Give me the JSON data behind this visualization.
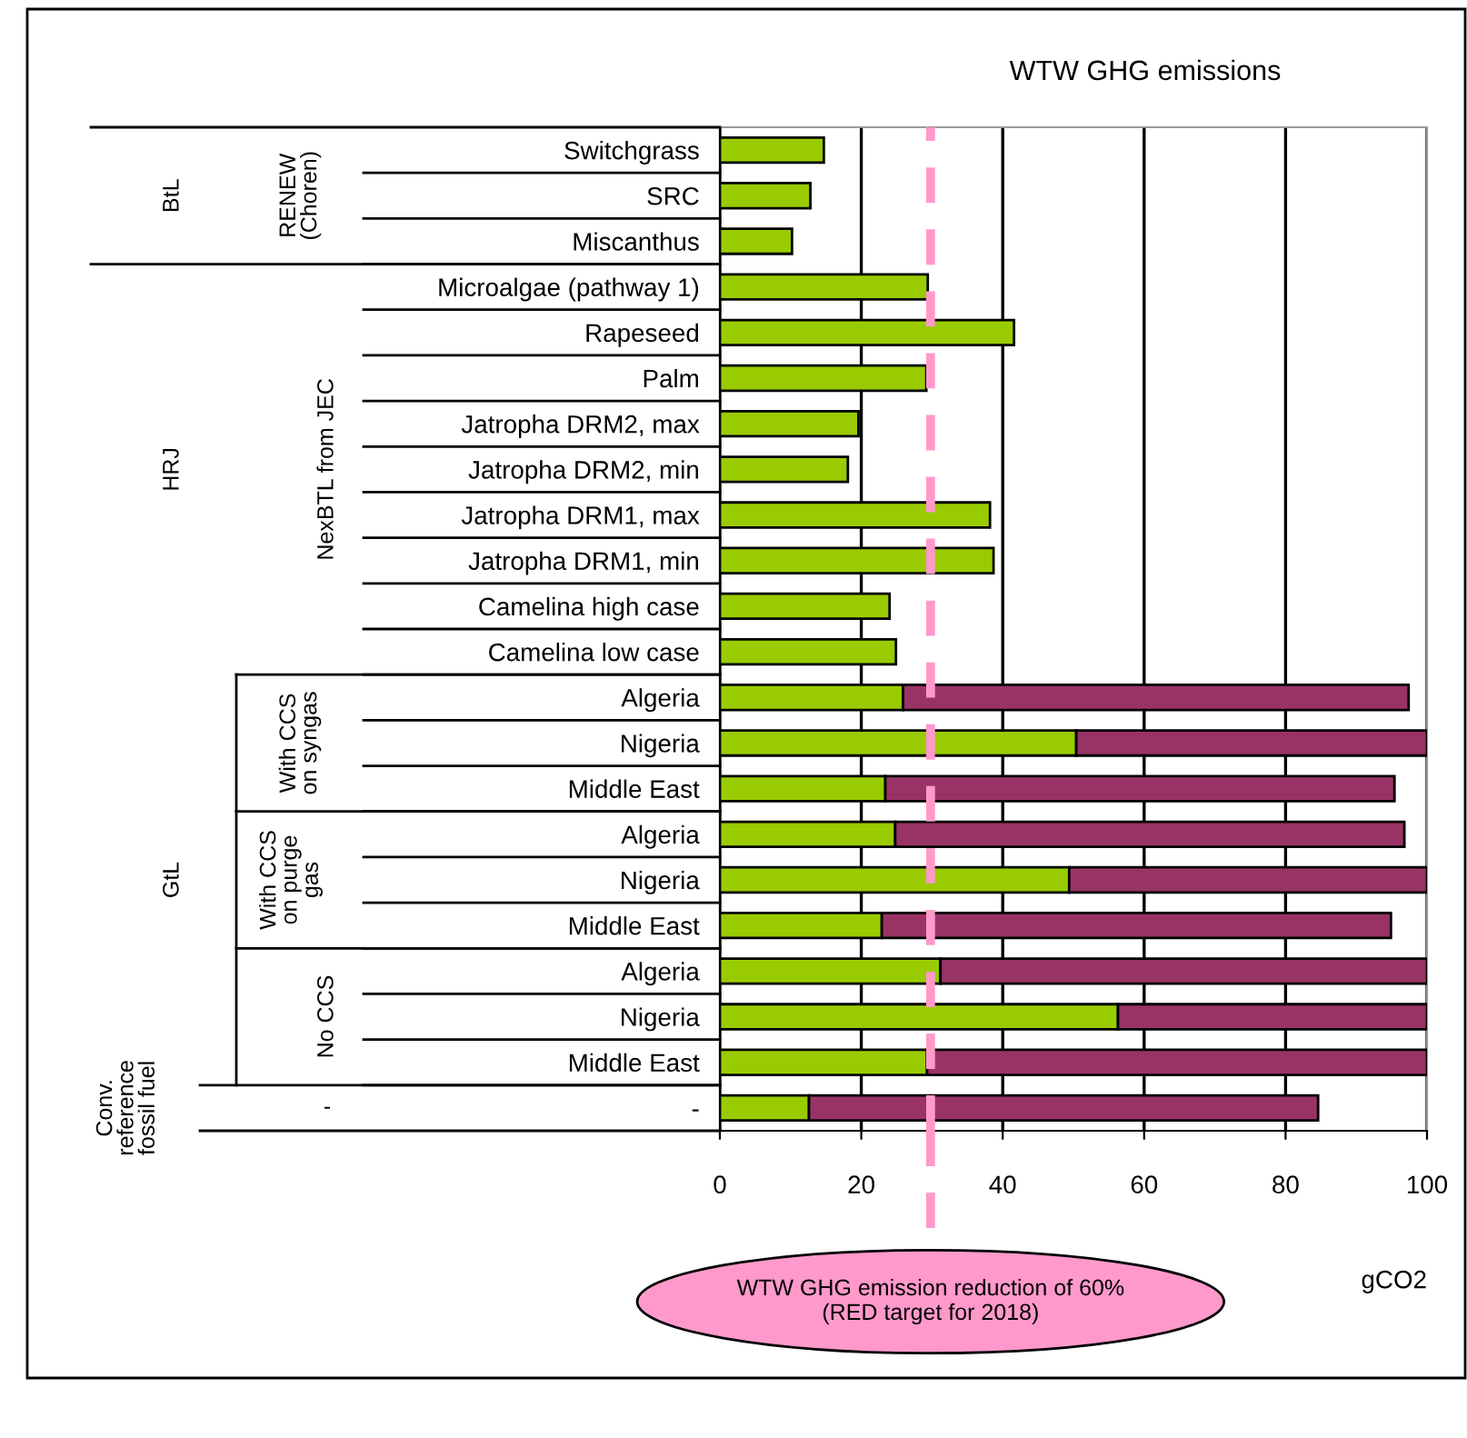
{
  "chart_data": {
    "type": "bar",
    "orientation": "horizontal",
    "stacked": true,
    "title": "WTW GHG emissions",
    "xlabel": "gCO2",
    "categories": [
      "Switchgrass",
      "SRC",
      "Miscanthus",
      "Microalgae (pathway 1)",
      "Rapeseed",
      "Palm",
      "Jatropha DRM2, max",
      "Jatropha DRM2, min",
      "Jatropha DRM1, max",
      "Jatropha DRM1, min",
      "Camelina high case",
      "Camelina low case",
      "Algeria",
      "Nigeria",
      "Middle East",
      "Algeria",
      "Nigeria",
      "Middle East",
      "Algeria",
      "Nigeria",
      "Middle East",
      "-"
    ],
    "series": [
      {
        "color": "#99cc00",
        "values": [
          14.7,
          12.8,
          10.2,
          29.4,
          41.6,
          29.2,
          19.6,
          18.1,
          38.2,
          38.7,
          24.0,
          24.9,
          25.9,
          50.4,
          23.4,
          24.8,
          49.4,
          22.9,
          31.2,
          56.3,
          29.3,
          12.6
        ]
      },
      {
        "color": "#993366",
        "values": [
          null,
          null,
          null,
          null,
          null,
          null,
          null,
          null,
          null,
          null,
          null,
          null,
          71.5,
          49.6,
          72.0,
          72.0,
          50.6,
          72.0,
          68.8,
          43.7,
          70.7,
          72.0
        ]
      }
    ],
    "xlim": [
      0,
      100
    ],
    "xticks": [
      0,
      20,
      40,
      60,
      80,
      100
    ],
    "grid": "x",
    "ref_lines": [
      {
        "axis": "x",
        "value": 29.8,
        "label": "WTW GHG emission reduction of 60%\n(RED target for 2018)",
        "color": "#ff99cc",
        "line_style": "dashed"
      }
    ],
    "annotations": [
      "BtL",
      "RENEW\n(Choren)",
      "HRJ",
      "NexBTL from JEC",
      "GtL",
      "With CCS\non syngas",
      "With CCS\non purge\ngas",
      "No CCS",
      "Conv.\nreference\nfossil fuel",
      "-"
    ]
  }
}
